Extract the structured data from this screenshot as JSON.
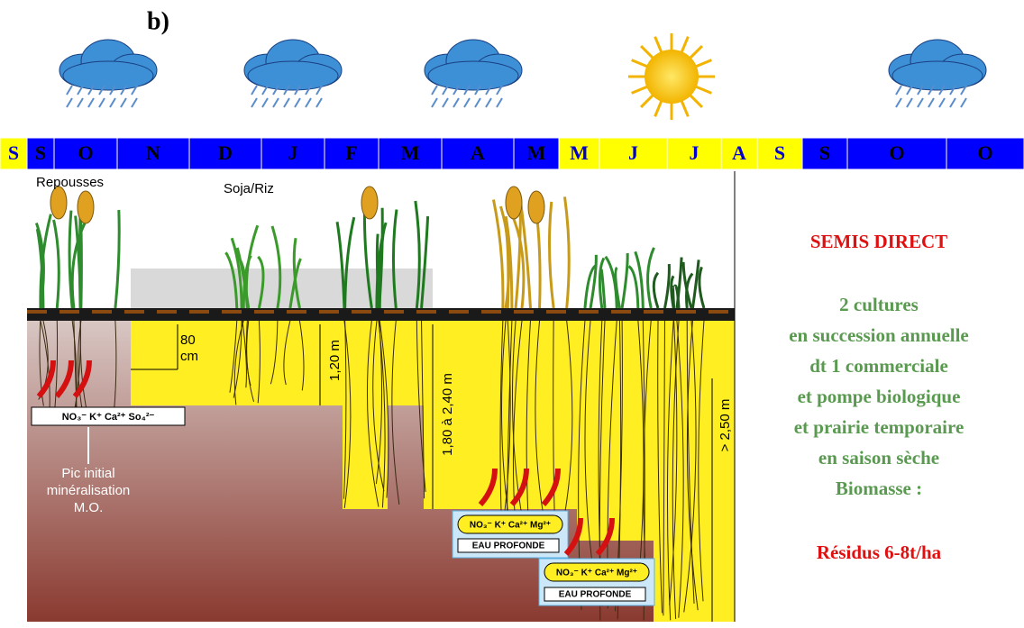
{
  "header": {
    "label": "b)"
  },
  "months": [
    {
      "label": "S",
      "bg": "#ffff00",
      "fg": "#0000cc"
    },
    {
      "label": "S",
      "bg": "#0000ff",
      "fg": "#000000"
    },
    {
      "label": "O",
      "bg": "#0000ff",
      "fg": "#000000"
    },
    {
      "label": "N",
      "bg": "#0000ff",
      "fg": "#000000"
    },
    {
      "label": "D",
      "bg": "#0000ff",
      "fg": "#000000"
    },
    {
      "label": "J",
      "bg": "#0000ff",
      "fg": "#000000"
    },
    {
      "label": "F",
      "bg": "#0000ff",
      "fg": "#000000"
    },
    {
      "label": "M",
      "bg": "#0000ff",
      "fg": "#000000"
    },
    {
      "label": "A",
      "bg": "#0000ff",
      "fg": "#000000"
    },
    {
      "label": "M",
      "bg": "#0000ff",
      "fg": "#000000"
    },
    {
      "label": "M",
      "bg": "#ffff00",
      "fg": "#0000cc"
    },
    {
      "label": "J",
      "bg": "#ffff00",
      "fg": "#0000cc"
    },
    {
      "label": "J",
      "bg": "#ffff00",
      "fg": "#0000cc"
    },
    {
      "label": "A",
      "bg": "#ffff00",
      "fg": "#0000cc"
    },
    {
      "label": "S",
      "bg": "#ffff00",
      "fg": "#0000cc"
    },
    {
      "label": "S",
      "bg": "#0000ff",
      "fg": "#000000"
    },
    {
      "label": "O",
      "bg": "#0000ff",
      "fg": "#000000"
    },
    {
      "label": "O",
      "bg": "#0000ff",
      "fg": "#000000"
    }
  ],
  "diagram": {
    "crop_labels": [
      "Repousses",
      "Soja/Riz"
    ],
    "depths": [
      "80",
      "cm",
      "1,20 m",
      "1,80 à 2,40 m",
      "> 2,50 m"
    ],
    "ions_initial": "NO₃⁻ K⁺ Ca²⁺ So₄²⁻",
    "peak_label": [
      "Pic initial",
      "minéralisation",
      "M.O."
    ],
    "ions_deep": [
      "NO₃⁻ K⁺ Ca²⁺ Mg²⁺",
      "NO₃⁻ K⁺ Ca²⁺ Mg²⁺"
    ],
    "water": [
      "EAU PROFONDE",
      "EAU PROFONDE"
    ]
  },
  "side": {
    "title": "SEMIS DIRECT",
    "lines": [
      "2 cultures",
      "en succession annuelle",
      "dt 1 commerciale",
      "et pompe biologique",
      "et prairie temporaire",
      "en saison sèche",
      "Biomasse :"
    ],
    "footer": "Résidus 6-8t/ha"
  }
}
